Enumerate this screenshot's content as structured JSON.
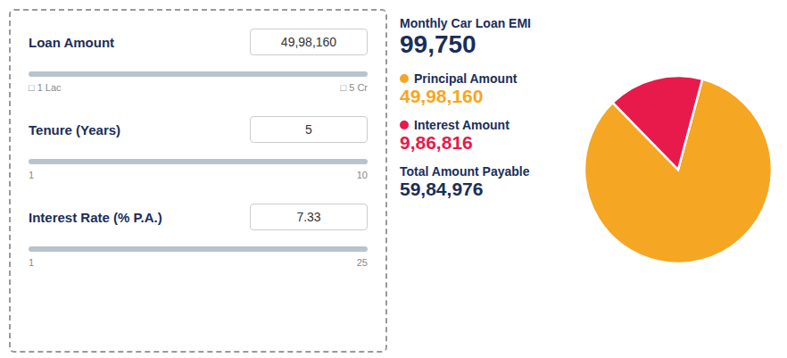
{
  "chart_data": {
    "type": "pie",
    "categories": [
      "Principal Amount",
      "Interest Amount"
    ],
    "values": [
      4998160,
      986816
    ],
    "colors": [
      "#f5a623",
      "#e8194b"
    ],
    "annotations": [
      "Loan Amount",
      "49,98,160",
      "□ 1 Lac",
      "□ 5 Cr",
      "Tenure (Years)",
      "5",
      "1",
      "10",
      "Interest Rate (% P.A.)",
      "7.33",
      "1",
      "25",
      "Monthly Car Loan EMI",
      "99,750",
      "49,98,160",
      "9,86,816",
      "Total Amount Payable",
      "59,84,976"
    ]
  }
}
